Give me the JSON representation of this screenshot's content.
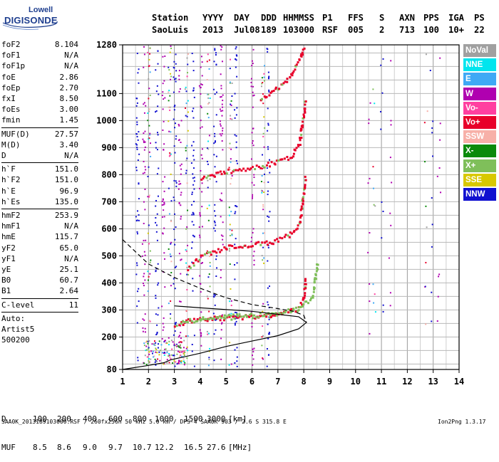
{
  "logo": {
    "line1": "Lowell",
    "line2": "DIGISONDE"
  },
  "header": {
    "labels": [
      "Station",
      "YYYY",
      "DAY",
      "DDD",
      "HHMMSS",
      "P1",
      "FFS",
      "S",
      "AXN",
      "PPS",
      "IGA",
      "PS"
    ],
    "values": [
      "SaoLuis",
      "2013",
      "Jul08",
      "189",
      "103000",
      "RSF",
      "005",
      "2",
      "713",
      "100",
      "10+",
      "22"
    ]
  },
  "params": [
    {
      "label": "foF2",
      "value": "8.104"
    },
    {
      "label": "foF1",
      "value": "N/A"
    },
    {
      "label": "foF1p",
      "value": "N/A"
    },
    {
      "label": "foE",
      "value": "2.86"
    },
    {
      "label": "foEp",
      "value": "2.70"
    },
    {
      "label": "fxI",
      "value": "8.50"
    },
    {
      "label": "foEs",
      "value": "3.00"
    },
    {
      "label": "fmin",
      "value": "1.45"
    },
    {
      "label": "MUF(D)",
      "value": "27.57"
    },
    {
      "label": "M(D)",
      "value": "3.40"
    },
    {
      "label": "D",
      "value": "N/A"
    },
    {
      "label": "h`F",
      "value": "151.0"
    },
    {
      "label": "h`F2",
      "value": "151.0"
    },
    {
      "label": "h`E",
      "value": "96.9"
    },
    {
      "label": "h`Es",
      "value": "135.0"
    },
    {
      "label": "hmF2",
      "value": "253.9"
    },
    {
      "label": "hmF1",
      "value": "N/A"
    },
    {
      "label": "hmE",
      "value": "115.7"
    },
    {
      "label": "yF2",
      "value": "65.0"
    },
    {
      "label": "yF1",
      "value": "N/A"
    },
    {
      "label": "yE",
      "value": "25.1"
    },
    {
      "label": "B0",
      "value": "60.7"
    },
    {
      "label": "B1",
      "value": "2.64"
    },
    {
      "label": "C-level",
      "value": "11"
    },
    {
      "label": "Auto:",
      "value": ""
    },
    {
      "label": "Artist5",
      "value": ""
    },
    {
      "label": "500200",
      "value": ""
    }
  ],
  "legend": [
    {
      "label": "NoVal",
      "color": "#a0a0a0"
    },
    {
      "label": "NNE",
      "color": "#00e5ee"
    },
    {
      "label": "E",
      "color": "#3fa9f5"
    },
    {
      "label": "W",
      "color": "#b000b0"
    },
    {
      "label": "Vo-",
      "color": "#ff3fa0"
    },
    {
      "label": "Vo+",
      "color": "#e8002a"
    },
    {
      "label": "SSW",
      "color": "#f7b0a8"
    },
    {
      "label": "X-",
      "color": "#0a8a0a"
    },
    {
      "label": "X+",
      "color": "#7fbf5a"
    },
    {
      "label": "SSE",
      "color": "#d8c800"
    },
    {
      "label": "NNW",
      "color": "#1010d0"
    }
  ],
  "muf_table": {
    "d_label": "D",
    "d_values": [
      "100",
      "200",
      "400",
      "600",
      "800",
      "1000",
      "1500",
      "3000"
    ],
    "d_unit": "[km]",
    "muf_label": "MUF",
    "muf_values": [
      "8.5",
      "8.6",
      "9.0",
      "9.7",
      "10.7",
      "12.2",
      "16.5",
      "27.6"
    ],
    "muf_unit": "[MHz]"
  },
  "footer": {
    "left": "SAA0K_2013189103000.RSF / 260fx256h 50 kHz 5.0 km / DPS-4 SAA0K 903 / 2.6 S 315.8 E",
    "right": "Ion2Png 1.3.17"
  },
  "chart_data": {
    "type": "scatter",
    "xlim": [
      1,
      14
    ],
    "ylim": [
      80,
      1280
    ],
    "x_ticks": [
      1,
      2,
      3,
      4,
      5,
      6,
      7,
      8,
      9,
      10,
      11,
      12,
      13,
      14
    ],
    "y_ticks": [
      80,
      200,
      300,
      400,
      500,
      600,
      700,
      800,
      900,
      1000,
      1100,
      1280
    ],
    "grid": true,
    "echo_traces": [
      {
        "mode": "O",
        "color": "#e8002a",
        "x": [
          3.0,
          3.5,
          4.5,
          5.5,
          6.5,
          7.2,
          7.7,
          7.95,
          8.05
        ],
        "y": [
          245,
          262,
          272,
          276,
          282,
          292,
          305,
          340,
          420
        ]
      },
      {
        "mode": "X",
        "color": "#7fbf5a",
        "x": [
          3.2,
          4.0,
          5.0,
          6.0,
          7.0,
          7.8,
          8.3,
          8.5
        ],
        "y": [
          258,
          270,
          278,
          283,
          292,
          308,
          350,
          480
        ]
      },
      {
        "mode": "O-2hop",
        "color": "#e8002a",
        "x": [
          3.5,
          4.0,
          5.0,
          6.0,
          6.8,
          7.4,
          7.8,
          8.05
        ],
        "y": [
          455,
          500,
          535,
          545,
          555,
          580,
          620,
          800
        ]
      },
      {
        "mode": "O-3hop",
        "color": "#e8002a",
        "x": [
          4.0,
          5.0,
          6.0,
          6.8,
          7.5,
          7.8,
          8.05
        ],
        "y": [
          790,
          815,
          830,
          845,
          870,
          920,
          1080
        ]
      },
      {
        "mode": "O-4hop",
        "color": "#e8002a",
        "x": [
          6.3,
          6.8,
          7.4,
          7.8,
          8.0
        ],
        "y": [
          1085,
          1110,
          1160,
          1230,
          1280
        ]
      }
    ],
    "profile_solid": {
      "x": [
        1.0,
        2.0,
        2.6,
        2.86,
        3.3,
        4.0,
        5.0,
        6.0,
        7.0,
        7.8,
        8.104,
        7.8,
        6.0,
        4.0,
        3.0
      ],
      "y": [
        80,
        95,
        105,
        115.7,
        125,
        140,
        165,
        185,
        205,
        230,
        253.9,
        275,
        295,
        308,
        315
      ]
    },
    "profile_dashed": {
      "x": [
        1.0,
        2.0,
        3.0,
        4.0,
        5.0,
        6.0,
        7.0,
        7.6,
        8.0,
        8.104
      ],
      "y": [
        560,
        470,
        420,
        380,
        345,
        320,
        305,
        295,
        280,
        253.9
      ]
    },
    "noise_columns": [
      1.55,
      1.8,
      2.0,
      2.3,
      2.55,
      2.8,
      3.0,
      3.2,
      3.45,
      3.7,
      4.0,
      4.3,
      4.55,
      4.8,
      5.15,
      5.35,
      6.0,
      6.4,
      6.6,
      10.5,
      10.7,
      11.0,
      11.3,
      12.7,
      12.9,
      13.2
    ]
  }
}
